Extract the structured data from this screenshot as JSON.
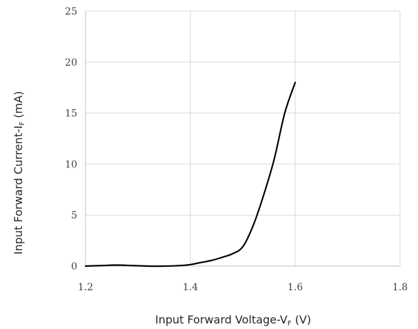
{
  "chart_data": {
    "type": "line",
    "title": "",
    "xlabel": {
      "prefix": "Input Forward Voltage-V",
      "subscript": "F",
      "suffix": "  (V)"
    },
    "ylabel": {
      "prefix": "Input Forward Current-I",
      "subscript": "F",
      "suffix": "  (mA)"
    },
    "xlim": [
      1.2,
      1.8
    ],
    "ylim": [
      0,
      25
    ],
    "xticks": [
      "1.2",
      "1.4",
      "1.6",
      "1.8"
    ],
    "yticks": [
      "0",
      "5",
      "10",
      "15",
      "20",
      "25"
    ],
    "grid": true,
    "legend": "none",
    "series": [
      {
        "color": "#000000",
        "x": [
          1.2,
          1.23,
          1.26,
          1.29,
          1.32,
          1.35,
          1.38,
          1.4,
          1.42,
          1.44,
          1.46,
          1.48,
          1.5,
          1.52,
          1.54,
          1.56,
          1.58,
          1.6
        ],
        "y": [
          0.0,
          0.05,
          0.1,
          0.05,
          0.0,
          0.0,
          0.05,
          0.15,
          0.35,
          0.55,
          0.85,
          1.2,
          1.9,
          4.0,
          7.0,
          10.5,
          15.0,
          18.0
        ]
      }
    ]
  }
}
